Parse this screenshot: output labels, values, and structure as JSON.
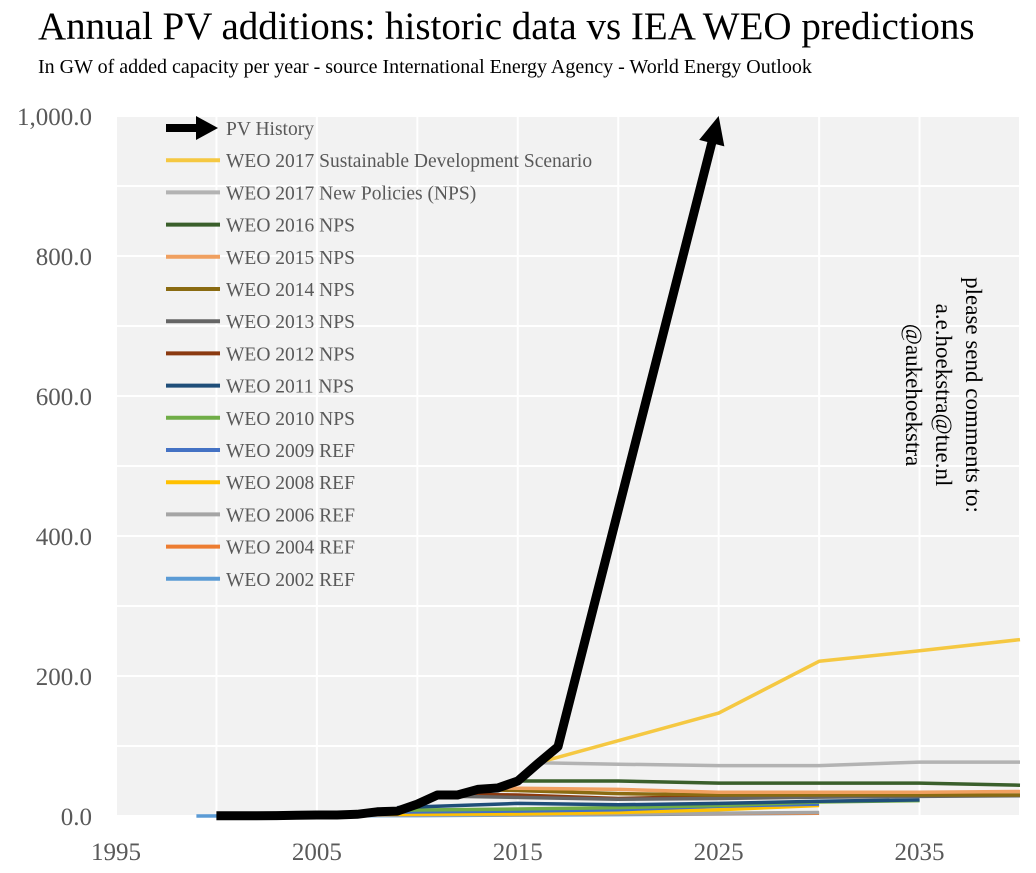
{
  "chart_data": {
    "type": "line",
    "title": "Annual PV additions: historic data vs IEA WEO predictions",
    "subtitle": "In GW of added capacity per year - source International Energy Agency - World Energy Outlook",
    "xlabel": "",
    "ylabel": "",
    "xlim": [
      1995,
      2040
    ],
    "ylim": [
      0,
      1000
    ],
    "x_ticks": [
      "1995",
      "2005",
      "2015",
      "2025",
      "2035"
    ],
    "y_ticks": [
      "0.0",
      "200.0",
      "400.0",
      "600.0",
      "800.0",
      "1,000.0"
    ],
    "grid": true,
    "legend_position": "top-left",
    "annotation": [
      "please send comments to:",
      "a.e.hoekstra@tue.nl",
      "@aukehoekstra"
    ],
    "series": [
      {
        "name": "PV History",
        "color": "#000000",
        "points": [
          [
            2000,
            0.3
          ],
          [
            2001,
            0.3
          ],
          [
            2002,
            0.4
          ],
          [
            2003,
            0.6
          ],
          [
            2004,
            1.1
          ],
          [
            2005,
            1.4
          ],
          [
            2006,
            1.5
          ],
          [
            2007,
            2.5
          ],
          [
            2008,
            6
          ],
          [
            2009,
            7
          ],
          [
            2010,
            17
          ],
          [
            2011,
            30
          ],
          [
            2012,
            30
          ],
          [
            2013,
            38
          ],
          [
            2014,
            40
          ],
          [
            2015,
            50
          ],
          [
            2016,
            75
          ],
          [
            2017,
            99
          ],
          [
            2025,
            1000
          ]
        ]
      },
      {
        "name": "WEO 2017 Sustainable Development Scenario",
        "color": "#f5c842",
        "points": [
          [
            2016,
            76
          ],
          [
            2025,
            147
          ],
          [
            2030,
            221
          ],
          [
            2035,
            236
          ],
          [
            2040,
            252
          ]
        ]
      },
      {
        "name": "WEO 2017 New Policies (NPS)",
        "color": "#b3b3b3",
        "points": [
          [
            2016,
            76
          ],
          [
            2020,
            74
          ],
          [
            2025,
            72
          ],
          [
            2030,
            72
          ],
          [
            2035,
            77
          ],
          [
            2040,
            77
          ]
        ]
      },
      {
        "name": "WEO 2016 NPS",
        "color": "#3a5f2b",
        "points": [
          [
            2015,
            50
          ],
          [
            2020,
            50
          ],
          [
            2025,
            47
          ],
          [
            2030,
            47
          ],
          [
            2035,
            47
          ],
          [
            2040,
            44
          ]
        ]
      },
      {
        "name": "WEO 2015 NPS",
        "color": "#f0a060",
        "points": [
          [
            2014,
            40
          ],
          [
            2020,
            38
          ],
          [
            2025,
            34
          ],
          [
            2030,
            34
          ],
          [
            2035,
            34
          ],
          [
            2040,
            35
          ]
        ]
      },
      {
        "name": "WEO 2014 NPS",
        "color": "#8a6b12",
        "points": [
          [
            2013,
            38
          ],
          [
            2020,
            32
          ],
          [
            2025,
            30
          ],
          [
            2030,
            30
          ],
          [
            2035,
            30
          ],
          [
            2040,
            30
          ]
        ]
      },
      {
        "name": "WEO 2013 NPS",
        "color": "#666666",
        "points": [
          [
            2012,
            28
          ],
          [
            2020,
            24
          ],
          [
            2025,
            25
          ],
          [
            2030,
            27
          ],
          [
            2035,
            28
          ],
          [
            2040,
            29
          ]
        ]
      },
      {
        "name": "WEO 2012 NPS",
        "color": "#8b3a10",
        "points": [
          [
            2011,
            31
          ],
          [
            2015,
            30
          ],
          [
            2020,
            25
          ],
          [
            2025,
            28
          ],
          [
            2030,
            29
          ],
          [
            2035,
            30
          ]
        ]
      },
      {
        "name": "WEO 2011 NPS",
        "color": "#1f4e79",
        "points": [
          [
            2009,
            12
          ],
          [
            2015,
            18
          ],
          [
            2020,
            16
          ],
          [
            2025,
            18
          ],
          [
            2030,
            21
          ],
          [
            2035,
            23
          ]
        ]
      },
      {
        "name": "WEO 2010 NPS",
        "color": "#70ad47",
        "points": [
          [
            2008,
            8
          ],
          [
            2015,
            10
          ],
          [
            2020,
            12
          ],
          [
            2025,
            15
          ],
          [
            2030,
            20
          ],
          [
            2035,
            22
          ]
        ]
      },
      {
        "name": "WEO 2009 REF",
        "color": "#4472c4",
        "points": [
          [
            2007,
            5
          ],
          [
            2015,
            7
          ],
          [
            2020,
            9
          ],
          [
            2025,
            14
          ],
          [
            2030,
            17
          ]
        ]
      },
      {
        "name": "WEO 2008 REF",
        "color": "#ffc000",
        "points": [
          [
            2006,
            2
          ],
          [
            2015,
            3
          ],
          [
            2020,
            5
          ],
          [
            2025,
            9
          ],
          [
            2030,
            15
          ]
        ]
      },
      {
        "name": "WEO 2006 REF",
        "color": "#a5a5a5",
        "points": [
          [
            2004,
            1
          ],
          [
            2015,
            2
          ],
          [
            2020,
            3
          ],
          [
            2030,
            5
          ]
        ]
      },
      {
        "name": "WEO 2004 REF",
        "color": "#ed7d31",
        "points": [
          [
            2002,
            1
          ],
          [
            2015,
            2
          ],
          [
            2020,
            3
          ],
          [
            2030,
            4
          ]
        ]
      },
      {
        "name": "WEO 2002 REF",
        "color": "#5b9bd5",
        "points": [
          [
            1999,
            0
          ],
          [
            2010,
            0.5
          ],
          [
            2020,
            2
          ],
          [
            2030,
            4
          ]
        ]
      }
    ]
  }
}
